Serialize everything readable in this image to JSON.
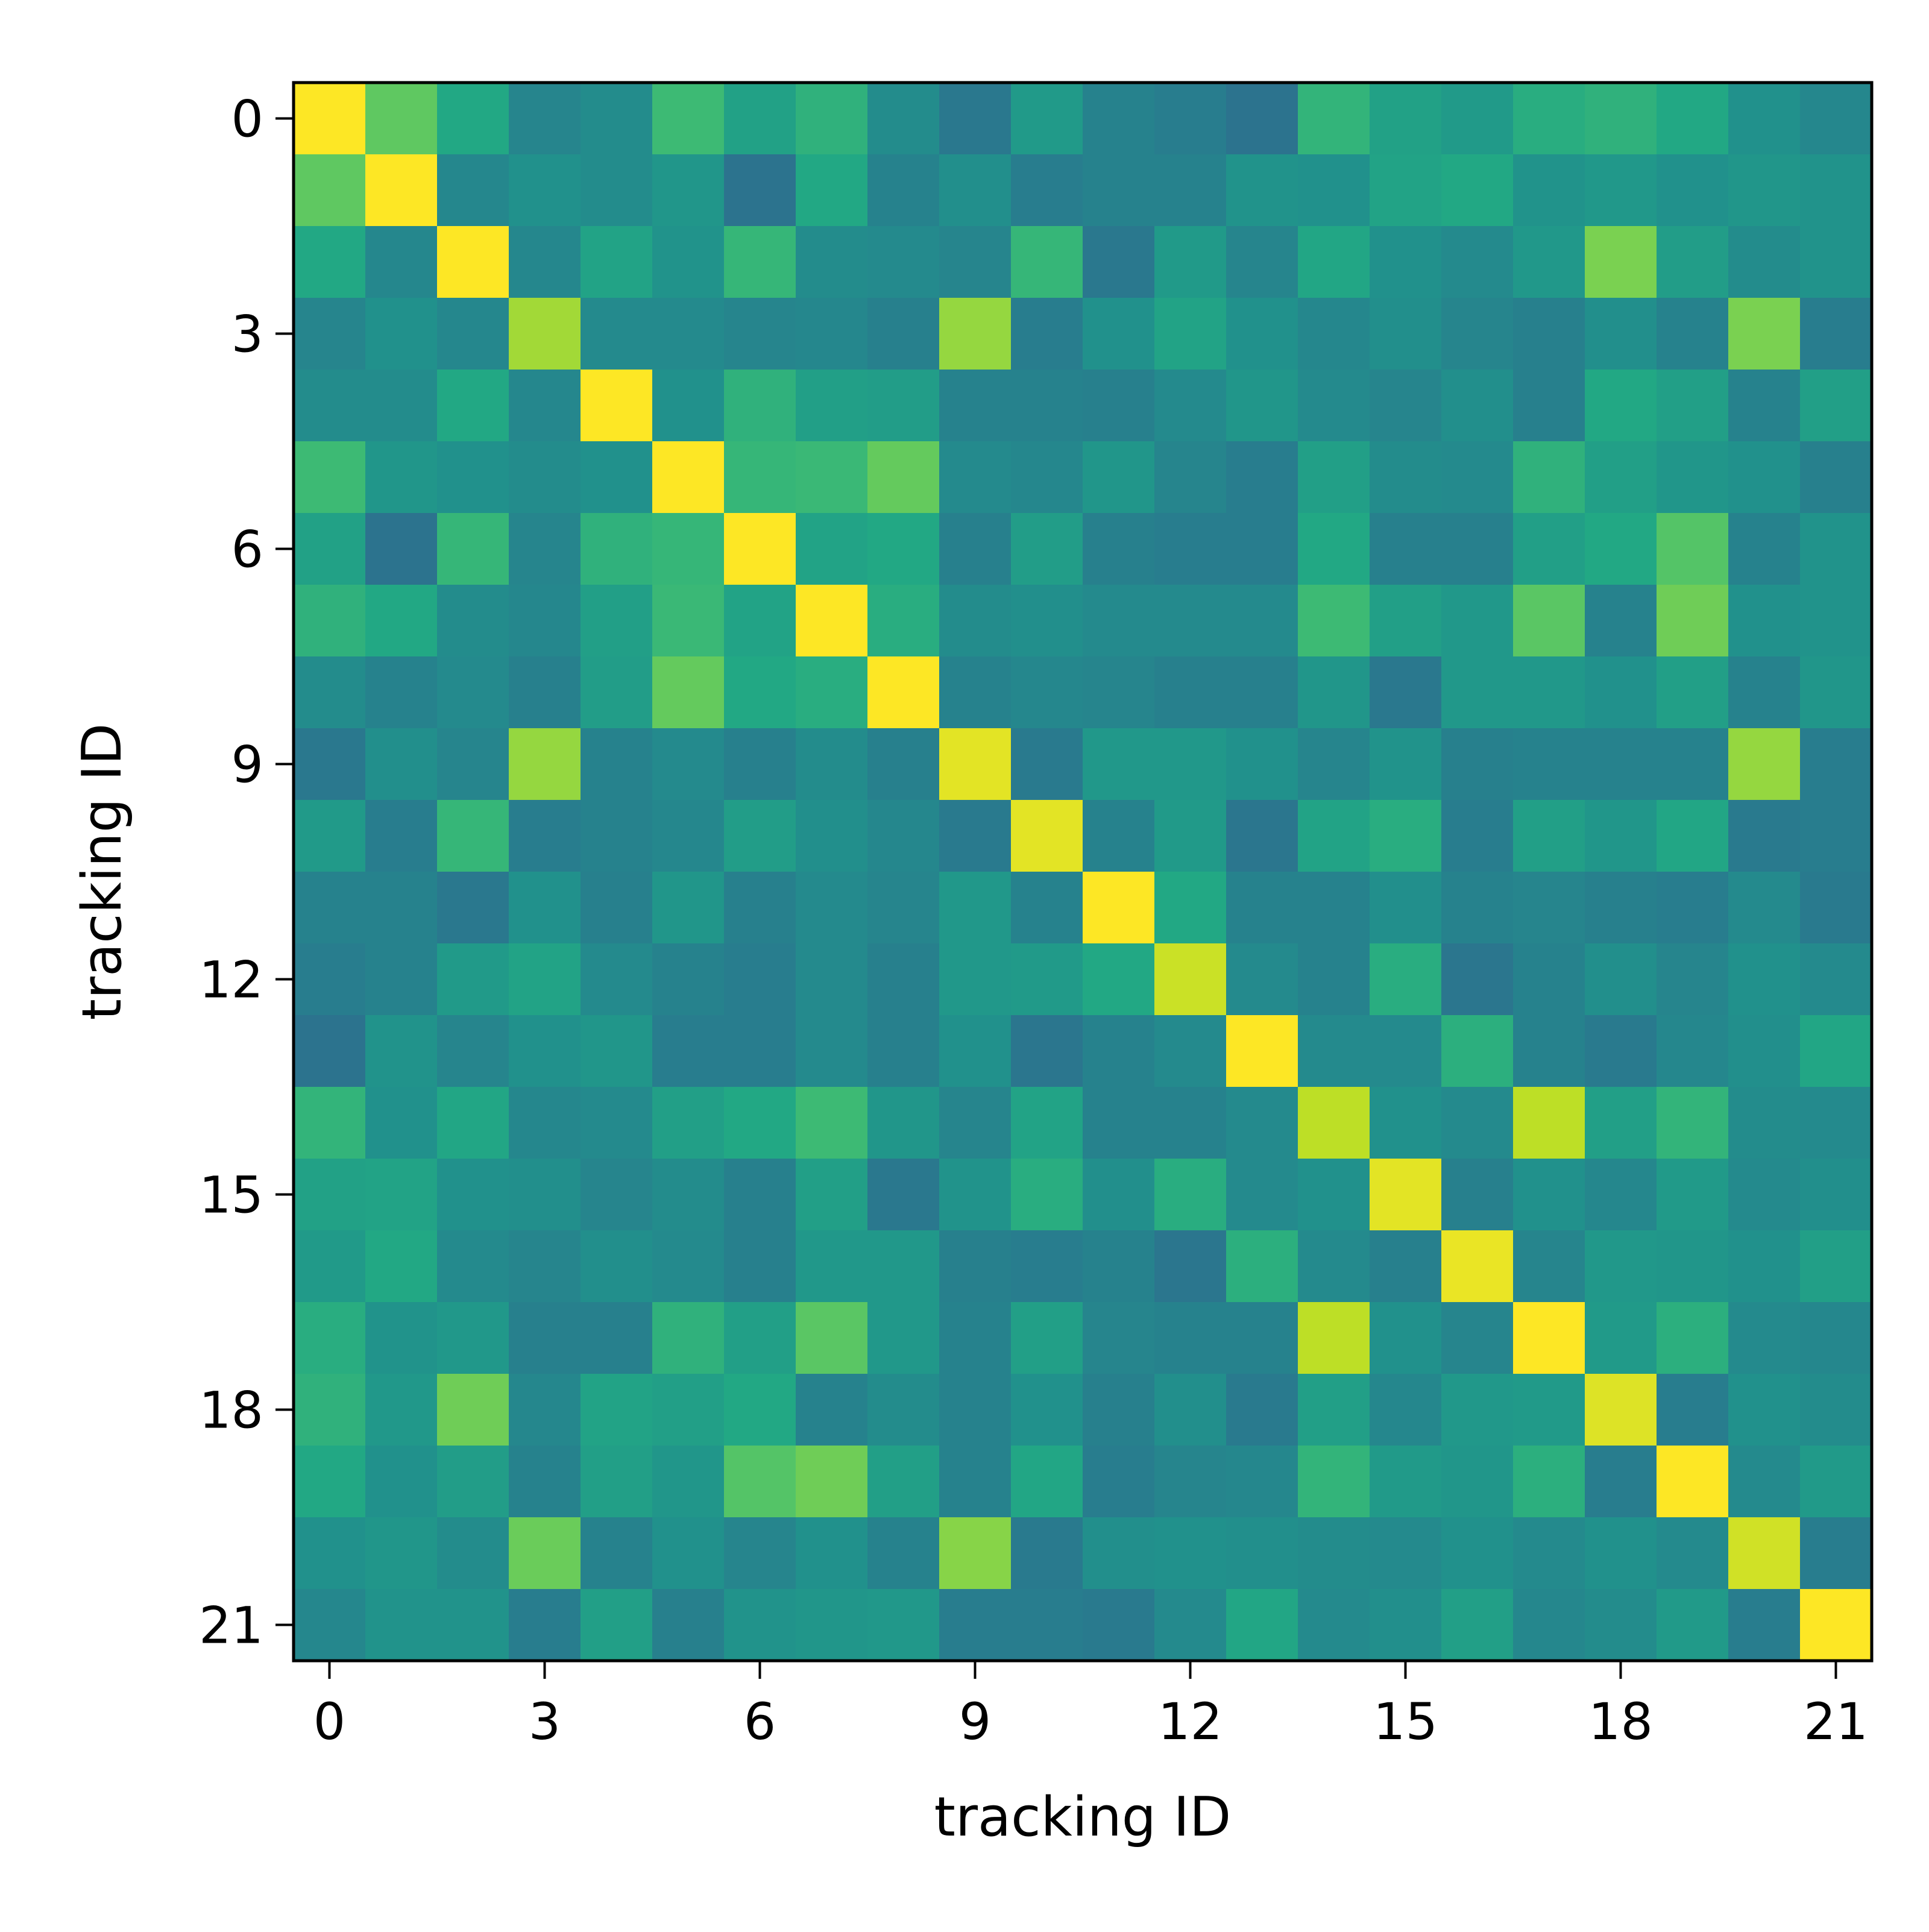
{
  "chart_data": {
    "type": "heatmap",
    "title": "",
    "xlabel": "tracking ID",
    "ylabel": "tracking ID",
    "x_ticks": [
      0,
      3,
      6,
      9,
      12,
      15,
      18,
      21
    ],
    "y_ticks": [
      0,
      3,
      6,
      9,
      12,
      15,
      18,
      21
    ],
    "xlim": [
      -0.5,
      21.5
    ],
    "ylim": [
      21.5,
      -0.5
    ],
    "colormap": "viridis",
    "value_range": [
      0,
      1
    ],
    "grid": false,
    "legend": "none",
    "matrix": [
      [
        1.0,
        0.75,
        0.6,
        0.45,
        0.48,
        0.68,
        0.57,
        0.64,
        0.48,
        0.4,
        0.54,
        0.44,
        0.42,
        0.38,
        0.65,
        0.57,
        0.54,
        0.62,
        0.64,
        0.6,
        0.5,
        0.46
      ],
      [
        0.75,
        1.0,
        0.46,
        0.5,
        0.48,
        0.52,
        0.38,
        0.6,
        0.44,
        0.49,
        0.42,
        0.44,
        0.44,
        0.51,
        0.5,
        0.58,
        0.6,
        0.51,
        0.53,
        0.5,
        0.52,
        0.51
      ],
      [
        0.6,
        0.46,
        1.0,
        0.46,
        0.58,
        0.51,
        0.66,
        0.48,
        0.47,
        0.45,
        0.66,
        0.4,
        0.54,
        0.45,
        0.59,
        0.5,
        0.47,
        0.53,
        0.8,
        0.55,
        0.48,
        0.51
      ],
      [
        0.45,
        0.5,
        0.46,
        0.86,
        0.47,
        0.47,
        0.45,
        0.46,
        0.43,
        0.84,
        0.42,
        0.5,
        0.58,
        0.5,
        0.46,
        0.49,
        0.45,
        0.43,
        0.49,
        0.44,
        0.8,
        0.42
      ],
      [
        0.48,
        0.48,
        0.6,
        0.46,
        1.0,
        0.5,
        0.64,
        0.56,
        0.55,
        0.44,
        0.44,
        0.43,
        0.47,
        0.52,
        0.47,
        0.45,
        0.49,
        0.43,
        0.6,
        0.56,
        0.44,
        0.56
      ],
      [
        0.68,
        0.52,
        0.5,
        0.48,
        0.5,
        1.0,
        0.66,
        0.67,
        0.76,
        0.47,
        0.46,
        0.52,
        0.45,
        0.42,
        0.56,
        0.48,
        0.47,
        0.64,
        0.56,
        0.52,
        0.5,
        0.43
      ],
      [
        0.57,
        0.38,
        0.66,
        0.45,
        0.64,
        0.66,
        1.0,
        0.58,
        0.6,
        0.43,
        0.55,
        0.43,
        0.42,
        0.42,
        0.6,
        0.43,
        0.43,
        0.56,
        0.6,
        0.73,
        0.44,
        0.51
      ],
      [
        0.64,
        0.6,
        0.48,
        0.46,
        0.56,
        0.67,
        0.58,
        1.0,
        0.62,
        0.48,
        0.49,
        0.47,
        0.47,
        0.47,
        0.68,
        0.56,
        0.53,
        0.74,
        0.44,
        0.78,
        0.5,
        0.51
      ],
      [
        0.48,
        0.44,
        0.47,
        0.43,
        0.55,
        0.76,
        0.6,
        0.62,
        1.0,
        0.44,
        0.46,
        0.45,
        0.43,
        0.43,
        0.52,
        0.4,
        0.53,
        0.53,
        0.5,
        0.56,
        0.44,
        0.52
      ],
      [
        0.4,
        0.49,
        0.45,
        0.84,
        0.44,
        0.47,
        0.43,
        0.48,
        0.43,
        0.96,
        0.41,
        0.53,
        0.53,
        0.5,
        0.45,
        0.51,
        0.43,
        0.44,
        0.44,
        0.44,
        0.84,
        0.42
      ],
      [
        0.54,
        0.42,
        0.66,
        0.42,
        0.44,
        0.46,
        0.55,
        0.49,
        0.46,
        0.41,
        0.96,
        0.44,
        0.54,
        0.39,
        0.58,
        0.62,
        0.42,
        0.56,
        0.52,
        0.59,
        0.41,
        0.42
      ],
      [
        0.44,
        0.44,
        0.4,
        0.5,
        0.43,
        0.52,
        0.43,
        0.47,
        0.45,
        0.53,
        0.44,
        1.0,
        0.6,
        0.44,
        0.44,
        0.49,
        0.44,
        0.45,
        0.43,
        0.42,
        0.47,
        0.41
      ],
      [
        0.42,
        0.44,
        0.54,
        0.58,
        0.47,
        0.44,
        0.42,
        0.47,
        0.43,
        0.53,
        0.54,
        0.6,
        0.92,
        0.47,
        0.44,
        0.62,
        0.39,
        0.44,
        0.49,
        0.45,
        0.5,
        0.47
      ],
      [
        0.38,
        0.51,
        0.45,
        0.5,
        0.52,
        0.42,
        0.42,
        0.47,
        0.43,
        0.5,
        0.39,
        0.44,
        0.47,
        1.0,
        0.47,
        0.47,
        0.63,
        0.44,
        0.41,
        0.46,
        0.49,
        0.59
      ],
      [
        0.65,
        0.5,
        0.59,
        0.46,
        0.47,
        0.56,
        0.6,
        0.68,
        0.52,
        0.45,
        0.58,
        0.44,
        0.44,
        0.47,
        0.9,
        0.5,
        0.47,
        0.9,
        0.56,
        0.65,
        0.48,
        0.47
      ],
      [
        0.57,
        0.58,
        0.5,
        0.49,
        0.45,
        0.48,
        0.43,
        0.56,
        0.4,
        0.51,
        0.62,
        0.49,
        0.62,
        0.47,
        0.5,
        0.96,
        0.43,
        0.5,
        0.46,
        0.54,
        0.47,
        0.49
      ],
      [
        0.54,
        0.6,
        0.47,
        0.45,
        0.49,
        0.47,
        0.43,
        0.53,
        0.53,
        0.43,
        0.42,
        0.44,
        0.39,
        0.63,
        0.47,
        0.43,
        0.97,
        0.45,
        0.53,
        0.52,
        0.5,
        0.56
      ],
      [
        0.62,
        0.51,
        0.53,
        0.43,
        0.43,
        0.64,
        0.56,
        0.74,
        0.53,
        0.44,
        0.56,
        0.45,
        0.44,
        0.44,
        0.9,
        0.5,
        0.45,
        1.0,
        0.54,
        0.63,
        0.47,
        0.46
      ],
      [
        0.64,
        0.53,
        0.78,
        0.46,
        0.58,
        0.56,
        0.6,
        0.44,
        0.48,
        0.44,
        0.5,
        0.43,
        0.49,
        0.41,
        0.56,
        0.46,
        0.53,
        0.54,
        0.95,
        0.42,
        0.5,
        0.48
      ],
      [
        0.6,
        0.5,
        0.55,
        0.44,
        0.56,
        0.52,
        0.73,
        0.78,
        0.56,
        0.44,
        0.59,
        0.42,
        0.45,
        0.46,
        0.65,
        0.54,
        0.52,
        0.63,
        0.42,
        1.0,
        0.47,
        0.54
      ],
      [
        0.5,
        0.52,
        0.48,
        0.77,
        0.44,
        0.5,
        0.45,
        0.5,
        0.44,
        0.82,
        0.41,
        0.49,
        0.5,
        0.49,
        0.48,
        0.47,
        0.5,
        0.47,
        0.5,
        0.47,
        0.93,
        0.42
      ],
      [
        0.46,
        0.51,
        0.51,
        0.42,
        0.56,
        0.43,
        0.51,
        0.52,
        0.53,
        0.42,
        0.42,
        0.41,
        0.47,
        0.59,
        0.47,
        0.49,
        0.56,
        0.46,
        0.48,
        0.54,
        0.42,
        1.0
      ]
    ]
  }
}
